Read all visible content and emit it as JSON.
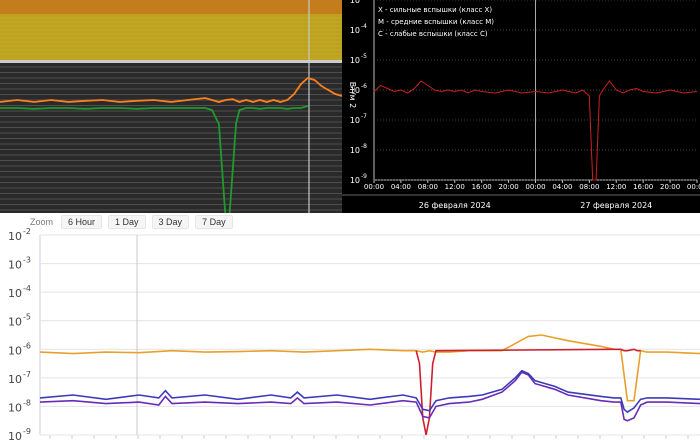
{
  "chart_data": [
    {
      "type": "line",
      "title": "",
      "xlabel": "",
      "ylabel": "",
      "grid": true,
      "background_bands": [
        "#c47d1c",
        "#bfa11f",
        "#b8b02a"
      ],
      "series": [
        {
          "color": "#ff7f1e",
          "x": [
            0,
            5,
            10,
            15,
            20,
            25,
            30,
            35,
            40,
            45,
            50,
            55,
            60,
            62,
            64,
            66,
            68,
            70,
            72,
            74,
            76,
            78,
            80,
            82,
            84,
            86,
            88,
            90,
            92,
            94,
            96,
            98,
            100
          ],
          "values": [
            -6.05,
            -6.0,
            -6.05,
            -6.0,
            -6.05,
            -6.02,
            -6.0,
            -6.05,
            -6.02,
            -6.0,
            -6.05,
            -6.0,
            -5.95,
            -6.0,
            -6.05,
            -6.0,
            -5.98,
            -6.05,
            -6.0,
            -6.05,
            -6.0,
            -6.05,
            -6.0,
            -6.05,
            -6.0,
            -5.85,
            -5.6,
            -5.45,
            -5.5,
            -5.65,
            -5.75,
            -5.85,
            -5.9
          ]
        },
        {
          "color": "#1f9a2c",
          "x": [
            0,
            5,
            10,
            15,
            20,
            25,
            30,
            35,
            40,
            45,
            50,
            55,
            60,
            62,
            64,
            65,
            66,
            67,
            68,
            69,
            70,
            72,
            74,
            76,
            78,
            80,
            82,
            84,
            86,
            88,
            90
          ],
          "values": [
            -6.2,
            -6.2,
            -6.22,
            -6.2,
            -6.2,
            -6.22,
            -6.2,
            -6.2,
            -6.22,
            -6.2,
            -6.2,
            -6.2,
            -6.2,
            -6.25,
            -6.6,
            -7.8,
            -9.0,
            -9.0,
            -7.8,
            -6.6,
            -6.25,
            -6.2,
            -6.2,
            -6.22,
            -6.2,
            -6.2,
            -6.2,
            -6.22,
            -6.2,
            -6.2,
            -6.15
          ]
        }
      ]
    },
    {
      "type": "line",
      "title": "",
      "xlabel": "",
      "ylabel": "Вт/м 2",
      "yscale": "log",
      "ylim": [
        -9,
        -2
      ],
      "y_ticks": [
        "10",
        "10",
        "10",
        "10",
        "10",
        "10",
        "10"
      ],
      "y_tick_exponents": [
        "-3",
        "-4",
        "-5",
        "-6",
        "-7",
        "-8",
        "-9"
      ],
      "y_tick_values": [
        -3,
        -4,
        -5,
        -6,
        -7,
        -8,
        -9
      ],
      "x_ticks": [
        "00:00",
        "04:00",
        "08:00",
        "12:00",
        "16:00",
        "20:00",
        "00:00",
        "04:00",
        "08:00",
        "12:00",
        "16:00",
        "20:00",
        "00:00"
      ],
      "x_tick_hours": [
        0,
        4,
        8,
        12,
        16,
        20,
        24,
        28,
        32,
        36,
        40,
        44,
        48
      ],
      "date_labels": [
        "26 февраля 2024",
        "27 февраля 2024"
      ],
      "date_label_hours": [
        12,
        36
      ],
      "legend_entries": [
        "X - сильные вспышки (класс X)",
        "M - средние вспышки (класс M)",
        "C - слабые вспышки (класс C)"
      ],
      "legend_position": "top-left",
      "grid": true,
      "series": [
        {
          "color": "#cc2020",
          "x": [
            0,
            1,
            2,
            3,
            4,
            5,
            6,
            7,
            8,
            9,
            10,
            11,
            12,
            13,
            14,
            15,
            16,
            18,
            20,
            22,
            24,
            26,
            28,
            30,
            31,
            32,
            32.5,
            33,
            33.5,
            34,
            35,
            36,
            37,
            38,
            39,
            40,
            42,
            44,
            46,
            48
          ],
          "values": [
            -6.05,
            -5.85,
            -5.95,
            -6.05,
            -6.0,
            -6.1,
            -5.95,
            -5.7,
            -5.85,
            -6.0,
            -6.05,
            -6.0,
            -6.05,
            -6.0,
            -6.1,
            -6.0,
            -6.05,
            -6.1,
            -6.0,
            -6.1,
            -6.05,
            -6.1,
            -6.0,
            -6.1,
            -6.0,
            -6.2,
            -9.0,
            -9.0,
            -6.2,
            -6.0,
            -5.7,
            -6.0,
            -6.1,
            -6.0,
            -5.95,
            -6.05,
            -6.1,
            -6.0,
            -6.1,
            -6.05
          ]
        }
      ]
    },
    {
      "type": "line",
      "title": "",
      "xlabel": "",
      "ylabel": "",
      "yscale": "log",
      "ylim": [
        -9,
        -2
      ],
      "y_ticks": [
        "10",
        "10",
        "10",
        "10",
        "10",
        "10",
        "10",
        "10"
      ],
      "y_tick_exponents": [
        "-2",
        "-3",
        "-4",
        "-5",
        "-6",
        "-7",
        "-8",
        "-9"
      ],
      "y_tick_values": [
        -2,
        -3,
        -4,
        -5,
        -6,
        -7,
        -8,
        -9
      ],
      "grid": true,
      "series": [
        {
          "color": "#e8a02a",
          "x": [
            0,
            5,
            10,
            15,
            20,
            25,
            30,
            35,
            40,
            45,
            50,
            55,
            57,
            58,
            59,
            60,
            62,
            65,
            70,
            72,
            74,
            76,
            78,
            80,
            85,
            87,
            88,
            89,
            90,
            91,
            92,
            95,
            100
          ],
          "values": [
            -6.1,
            -6.15,
            -6.1,
            -6.12,
            -6.05,
            -6.1,
            -6.08,
            -6.05,
            -6.1,
            -6.05,
            -6.0,
            -6.05,
            -6.05,
            -6.1,
            -6.05,
            -6.1,
            -6.1,
            -6.05,
            -6.05,
            -5.8,
            -5.55,
            -5.5,
            -5.6,
            -5.7,
            -5.9,
            -6.0,
            -6.0,
            -7.8,
            -7.8,
            -6.05,
            -6.1,
            -6.1,
            -6.15
          ]
        },
        {
          "color": "#cc2030",
          "x": [
            57,
            57.5,
            58,
            58.5,
            59,
            59.5,
            60,
            87,
            88,
            88.5,
            89,
            90,
            90.5,
            91
          ],
          "values": [
            -6.05,
            -6.5,
            -8.4,
            -9.0,
            -8.4,
            -6.5,
            -6.05,
            -6.0,
            -6.0,
            -6.05,
            -6.05,
            -6.0,
            -6.05,
            -6.05
          ]
        },
        {
          "color": "#6a2bb8",
          "x": [
            0,
            5,
            10,
            15,
            18,
            19,
            20,
            25,
            30,
            35,
            38,
            39,
            40,
            45,
            50,
            55,
            57,
            58,
            59,
            60,
            62,
            65,
            67,
            70,
            72,
            73,
            74,
            75,
            78,
            80,
            85,
            87,
            88,
            88.5,
            89,
            90,
            91,
            92,
            95,
            100
          ],
          "values": [
            -7.85,
            -7.8,
            -7.9,
            -7.85,
            -7.95,
            -7.65,
            -7.9,
            -7.85,
            -7.9,
            -7.85,
            -7.9,
            -7.7,
            -7.9,
            -7.85,
            -7.95,
            -7.8,
            -7.85,
            -8.35,
            -8.4,
            -8.0,
            -7.9,
            -7.85,
            -7.75,
            -7.5,
            -7.1,
            -6.8,
            -6.9,
            -7.2,
            -7.4,
            -7.6,
            -7.8,
            -7.85,
            -7.85,
            -8.45,
            -8.5,
            -8.4,
            -7.95,
            -7.85,
            -7.85,
            -7.9
          ]
        },
        {
          "color": "#3b3bb8",
          "x": [
            0,
            5,
            10,
            15,
            18,
            19,
            20,
            25,
            30,
            35,
            38,
            39,
            40,
            45,
            50,
            55,
            57,
            58,
            59,
            60,
            62,
            65,
            67,
            70,
            72,
            73,
            74,
            75,
            78,
            80,
            85,
            87,
            88,
            88.5,
            89,
            90,
            91,
            92,
            95,
            100
          ],
          "values": [
            -7.7,
            -7.6,
            -7.75,
            -7.6,
            -7.7,
            -7.45,
            -7.7,
            -7.6,
            -7.75,
            -7.6,
            -7.7,
            -7.5,
            -7.7,
            -7.6,
            -7.75,
            -7.6,
            -7.7,
            -8.1,
            -8.15,
            -7.8,
            -7.7,
            -7.65,
            -7.6,
            -7.4,
            -7.0,
            -6.75,
            -6.85,
            -7.1,
            -7.3,
            -7.5,
            -7.65,
            -7.7,
            -7.7,
            -8.1,
            -8.2,
            -8.05,
            -7.75,
            -7.7,
            -7.7,
            -7.75
          ]
        }
      ]
    }
  ],
  "zoom": {
    "label": "Zoom",
    "options": [
      "6 Hour",
      "1 Day",
      "3 Day",
      "7 Day"
    ]
  }
}
